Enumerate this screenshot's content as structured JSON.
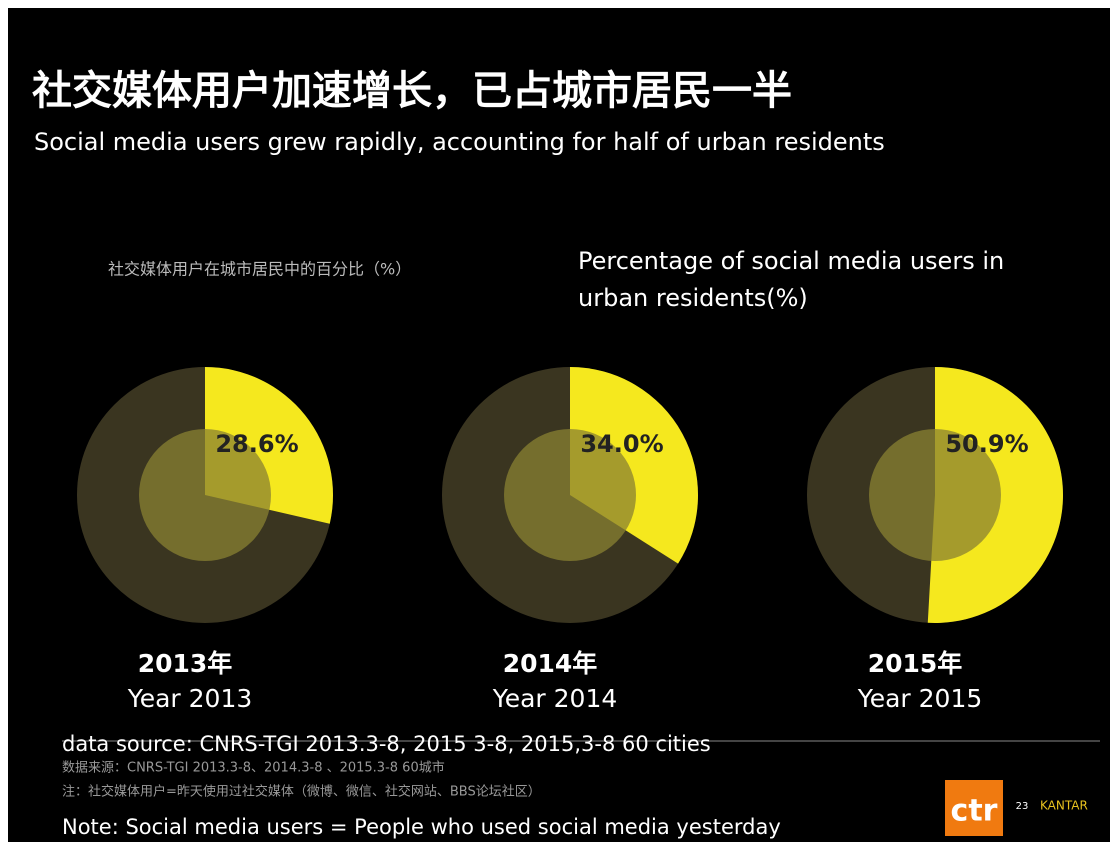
{
  "title": "社交媒体用户加速增长，已占城市居民一半",
  "subtitle": "Social media users grew rapidly, accounting for half of urban residents",
  "caption_cn": "社交媒体用户在城市居民中的百分比（%）",
  "caption_en": [
    "Percentage of social media users in",
    "urban residents(%)"
  ],
  "source_en": "data source: CNRS-TGI 2013.3-8, 2015 3-8, 2015,3-8 60 cities",
  "source_cn": "数据来源：CNRS-TGI 2013.3-8、2014.3-8 、2015.3-8 60城市",
  "note_cn": "注：社交媒体用户=昨天使用过社交媒体（微博、微信、社交网站、BBS论坛社区）",
  "note_en": "Note: Social media users = People who used social media yesterday",
  "logo": {
    "text": "ctr",
    "page": "23",
    "brand": "KANTAR"
  },
  "chart_data": [
    {
      "type": "pie",
      "title": "2013年",
      "subtitle": "Year 2013",
      "values": [
        28.6
      ],
      "value_labels": [
        "28.6%"
      ],
      "color": "#f5e81e",
      "rest_color": "#3a3520"
    },
    {
      "type": "pie",
      "title": "2014年",
      "subtitle": "Year 2014",
      "values": [
        34.0
      ],
      "value_labels": [
        "34.0%"
      ],
      "color": "#f5e81e",
      "rest_color": "#3a3520"
    },
    {
      "type": "pie",
      "title": "2015年",
      "subtitle": "Year 2015",
      "values": [
        50.9
      ],
      "value_labels": [
        "50.9%"
      ],
      "color": "#f5e81e",
      "rest_color": "#3a3520"
    }
  ]
}
